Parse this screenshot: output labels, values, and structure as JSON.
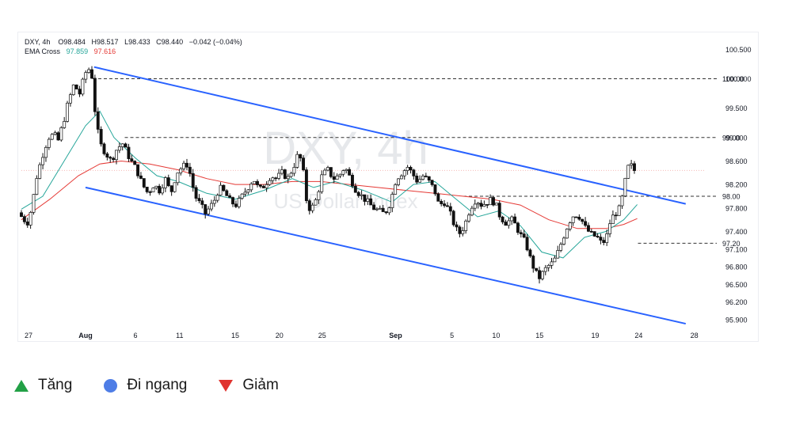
{
  "chart_data": {
    "type": "candlestick",
    "symbol_line": {
      "symbol": "DXY, 4h",
      "o": "O98.484",
      "h": "H98.517",
      "l": "L98.433",
      "c": "C98.440",
      "chg": "−0.042 (−0.04%)"
    },
    "ema_line": {
      "label": "EMA Cross",
      "fast": "97.859",
      "slow": "97.616"
    },
    "watermark": {
      "title": "DXY, 4h",
      "subtitle": "US Dollar Index"
    },
    "ylim": [
      95.75,
      100.6
    ],
    "xlim": [
      0,
      960
    ],
    "y_ticks": [
      "100.500",
      "100.000",
      "99.500",
      "99.000",
      "98.600",
      "98.200",
      "97.800",
      "97.400",
      "97.100",
      "96.800",
      "96.500",
      "96.200",
      "95.900"
    ],
    "x_ticks": [
      {
        "label": "27",
        "x": 10,
        "bold": false
      },
      {
        "label": "Aug",
        "x": 90,
        "bold": true
      },
      {
        "label": "6",
        "x": 160,
        "bold": false
      },
      {
        "label": "11",
        "x": 222,
        "bold": false
      },
      {
        "label": "15",
        "x": 300,
        "bold": false
      },
      {
        "label": "20",
        "x": 362,
        "bold": false
      },
      {
        "label": "25",
        "x": 422,
        "bold": false
      },
      {
        "label": "Sep",
        "x": 525,
        "bold": true
      },
      {
        "label": "5",
        "x": 604,
        "bold": false
      },
      {
        "label": "10",
        "x": 666,
        "bold": false
      },
      {
        "label": "15",
        "x": 727,
        "bold": false
      },
      {
        "label": "19",
        "x": 805,
        "bold": false
      },
      {
        "label": "24",
        "x": 866,
        "bold": false
      },
      {
        "label": "28",
        "x": 944,
        "bold": false
      }
    ],
    "levels": [
      {
        "value": 100.0,
        "label": "100.00",
        "x_from": 100
      },
      {
        "value": 99.0,
        "label": "99.00",
        "x_from": 145
      },
      {
        "value": 98.0,
        "label": "98.00",
        "x_from": 620
      },
      {
        "value": 97.2,
        "label": "97.20",
        "x_from": 865
      }
    ],
    "current_price": 98.44,
    "channel_lines": [
      {
        "from": [
          102,
          100.2
        ],
        "to": [
          932,
          97.87
        ]
      },
      {
        "from": [
          90,
          98.15
        ],
        "to": [
          932,
          95.83
        ]
      }
    ],
    "price_path": [
      [
        0,
        97.72
      ],
      [
        8,
        97.6
      ],
      [
        14,
        97.55
      ],
      [
        20,
        97.9
      ],
      [
        26,
        98.35
      ],
      [
        34,
        98.7
      ],
      [
        42,
        99.0
      ],
      [
        50,
        99.05
      ],
      [
        56,
        98.95
      ],
      [
        64,
        99.3
      ],
      [
        70,
        99.6
      ],
      [
        78,
        99.9
      ],
      [
        86,
        99.75
      ],
      [
        94,
        100.1
      ],
      [
        102,
        100.2
      ],
      [
        108,
        99.4
      ],
      [
        114,
        98.9
      ],
      [
        122,
        98.75
      ],
      [
        130,
        98.6
      ],
      [
        138,
        98.8
      ],
      [
        146,
        98.9
      ],
      [
        152,
        98.75
      ],
      [
        158,
        98.6
      ],
      [
        166,
        98.45
      ],
      [
        174,
        98.2
      ],
      [
        182,
        98.05
      ],
      [
        190,
        98.2
      ],
      [
        198,
        98.1
      ],
      [
        206,
        98.3
      ],
      [
        214,
        98.05
      ],
      [
        222,
        98.4
      ],
      [
        230,
        98.5
      ],
      [
        238,
        98.55
      ],
      [
        244,
        98.2
      ],
      [
        250,
        97.95
      ],
      [
        256,
        97.85
      ],
      [
        262,
        97.7
      ],
      [
        268,
        97.8
      ],
      [
        274,
        97.9
      ],
      [
        282,
        98.15
      ],
      [
        290,
        98.05
      ],
      [
        298,
        97.9
      ],
      [
        306,
        97.85
      ],
      [
        314,
        98.0
      ],
      [
        322,
        98.15
      ],
      [
        330,
        98.3
      ],
      [
        338,
        98.1
      ],
      [
        346,
        98.2
      ],
      [
        354,
        98.35
      ],
      [
        362,
        98.3
      ],
      [
        370,
        98.4
      ],
      [
        378,
        98.3
      ],
      [
        386,
        98.5
      ],
      [
        392,
        98.7
      ],
      [
        398,
        98.6
      ],
      [
        404,
        97.95
      ],
      [
        410,
        97.75
      ],
      [
        418,
        97.95
      ],
      [
        426,
        98.35
      ],
      [
        434,
        98.45
      ],
      [
        442,
        98.3
      ],
      [
        450,
        98.35
      ],
      [
        458,
        98.5
      ],
      [
        466,
        98.3
      ],
      [
        474,
        98.1
      ],
      [
        482,
        98.0
      ],
      [
        490,
        97.9
      ],
      [
        498,
        97.8
      ],
      [
        506,
        97.75
      ],
      [
        514,
        97.7
      ],
      [
        522,
        97.9
      ],
      [
        530,
        98.3
      ],
      [
        538,
        98.4
      ],
      [
        546,
        98.5
      ],
      [
        552,
        98.4
      ],
      [
        560,
        98.25
      ],
      [
        568,
        98.35
      ],
      [
        576,
        98.25
      ],
      [
        584,
        98.1
      ],
      [
        590,
        97.85
      ],
      [
        598,
        97.9
      ],
      [
        606,
        97.7
      ],
      [
        612,
        97.5
      ],
      [
        618,
        97.35
      ],
      [
        626,
        97.5
      ],
      [
        634,
        97.8
      ],
      [
        642,
        97.95
      ],
      [
        650,
        97.85
      ],
      [
        658,
        97.9
      ],
      [
        664,
        97.95
      ],
      [
        670,
        97.85
      ],
      [
        676,
        97.65
      ],
      [
        684,
        97.55
      ],
      [
        692,
        97.6
      ],
      [
        698,
        97.5
      ],
      [
        704,
        97.35
      ],
      [
        712,
        97.2
      ],
      [
        718,
        96.95
      ],
      [
        724,
        96.75
      ],
      [
        730,
        96.6
      ],
      [
        736,
        96.7
      ],
      [
        742,
        96.8
      ],
      [
        748,
        96.85
      ],
      [
        754,
        96.95
      ],
      [
        760,
        97.15
      ],
      [
        766,
        97.35
      ],
      [
        772,
        97.55
      ],
      [
        780,
        97.7
      ],
      [
        788,
        97.65
      ],
      [
        796,
        97.45
      ],
      [
        804,
        97.35
      ],
      [
        812,
        97.3
      ],
      [
        818,
        97.2
      ],
      [
        824,
        97.25
      ],
      [
        830,
        97.55
      ],
      [
        836,
        97.7
      ],
      [
        842,
        97.75
      ],
      [
        846,
        97.9
      ],
      [
        850,
        98.15
      ],
      [
        854,
        98.45
      ],
      [
        858,
        98.55
      ],
      [
        864,
        98.44
      ]
    ],
    "ema_fast_path": [
      [
        0,
        97.78
      ],
      [
        30,
        98.0
      ],
      [
        60,
        98.6
      ],
      [
        90,
        99.2
      ],
      [
        110,
        99.45
      ],
      [
        130,
        99.0
      ],
      [
        160,
        98.65
      ],
      [
        190,
        98.35
      ],
      [
        220,
        98.25
      ],
      [
        260,
        98.05
      ],
      [
        300,
        97.95
      ],
      [
        340,
        98.1
      ],
      [
        380,
        98.3
      ],
      [
        410,
        98.15
      ],
      [
        440,
        98.25
      ],
      [
        480,
        98.1
      ],
      [
        520,
        97.9
      ],
      [
        550,
        98.2
      ],
      [
        580,
        98.25
      ],
      [
        610,
        97.95
      ],
      [
        640,
        97.65
      ],
      [
        670,
        97.75
      ],
      [
        700,
        97.5
      ],
      [
        730,
        97.05
      ],
      [
        760,
        96.95
      ],
      [
        790,
        97.3
      ],
      [
        820,
        97.4
      ],
      [
        845,
        97.6
      ],
      [
        864,
        97.86
      ]
    ],
    "ema_slow_path": [
      [
        0,
        97.6
      ],
      [
        40,
        97.95
      ],
      [
        80,
        98.35
      ],
      [
        110,
        98.55
      ],
      [
        140,
        98.6
      ],
      [
        180,
        98.55
      ],
      [
        220,
        98.45
      ],
      [
        260,
        98.3
      ],
      [
        300,
        98.2
      ],
      [
        340,
        98.2
      ],
      [
        380,
        98.25
      ],
      [
        420,
        98.25
      ],
      [
        460,
        98.2
      ],
      [
        500,
        98.15
      ],
      [
        540,
        98.1
      ],
      [
        580,
        98.05
      ],
      [
        620,
        98.0
      ],
      [
        660,
        97.95
      ],
      [
        700,
        97.85
      ],
      [
        740,
        97.6
      ],
      [
        780,
        97.45
      ],
      [
        820,
        97.45
      ],
      [
        845,
        97.52
      ],
      [
        864,
        97.62
      ]
    ]
  },
  "bottom_legend": {
    "up": "Tăng",
    "sideways": "Đi ngang",
    "down": "Giảm"
  },
  "colors": {
    "up": "#26a269",
    "down": "#111111",
    "channel": "#2962ff",
    "ema_fast": "#26a69a",
    "ema_slow": "#e53935"
  }
}
